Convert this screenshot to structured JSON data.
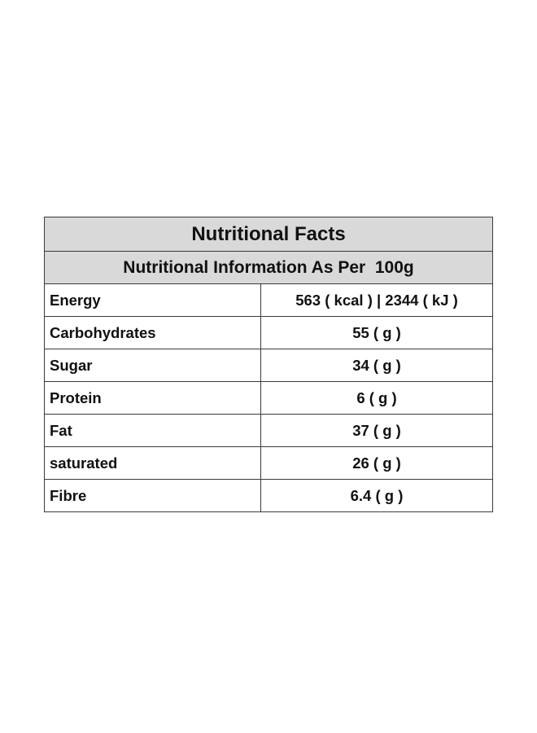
{
  "header": {
    "title": "Nutritional Facts",
    "subtitle": "Nutritional Information As Per  100g"
  },
  "table": {
    "rows": [
      [
        "Energy",
        "563 ( kcal ) | 2344 ( kJ )"
      ],
      [
        "Carbohydrates",
        "55 ( g )"
      ],
      [
        "Sugar",
        "34 ( g )"
      ],
      [
        "Protein",
        "6 ( g )"
      ],
      [
        "Fat",
        "37 ( g )"
      ],
      [
        "saturated",
        "26 ( g )"
      ],
      [
        "Fibre",
        "6.4 ( g )"
      ]
    ]
  }
}
